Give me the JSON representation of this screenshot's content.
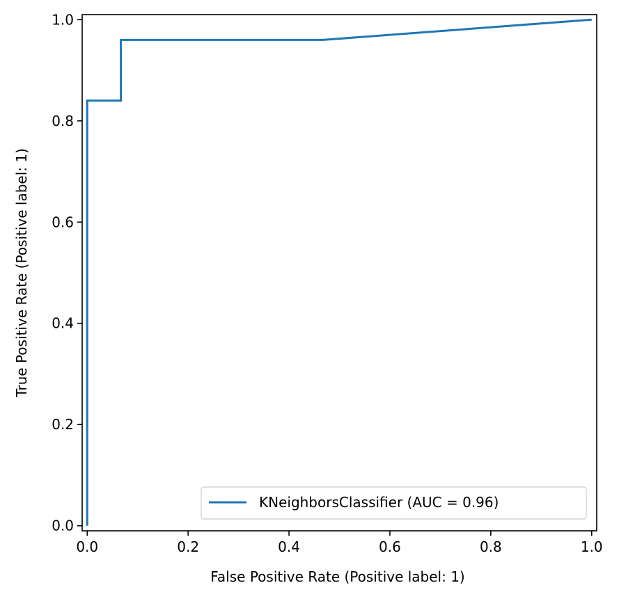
{
  "chart_data": {
    "type": "line",
    "title": "",
    "xlabel": "False Positive Rate (Positive label: 1)",
    "ylabel": "True Positive Rate (Positive label: 1)",
    "xlim": [
      -0.01,
      1.01
    ],
    "ylim": [
      -0.01,
      1.01
    ],
    "xticks": [
      0.0,
      0.2,
      0.4,
      0.6,
      0.8,
      1.0
    ],
    "xtick_labels": [
      "0.0",
      "0.2",
      "0.4",
      "0.6",
      "0.8",
      "1.0"
    ],
    "yticks": [
      0.0,
      0.2,
      0.4,
      0.6,
      0.8,
      1.0
    ],
    "ytick_labels": [
      "0.0",
      "0.2",
      "0.4",
      "0.6",
      "0.8",
      "1.0"
    ],
    "grid": false,
    "legend_position": "lower-right",
    "series": [
      {
        "name": "KNeighborsClassifier (AUC = 0.96)",
        "color": "#1f77b4",
        "x": [
          0.0,
          0.0,
          0.0667,
          0.0667,
          0.4667,
          1.0
        ],
        "y": [
          0.0,
          0.84,
          0.84,
          0.96,
          0.96,
          1.0
        ]
      }
    ]
  }
}
